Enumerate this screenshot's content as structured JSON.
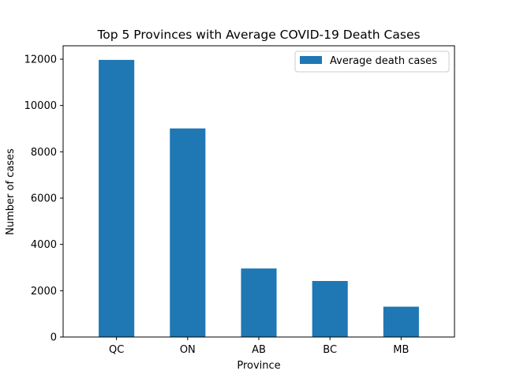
{
  "chart_data": {
    "type": "bar",
    "title": "Top 5 Provinces with Average COVID-19 Death Cases",
    "xlabel": "Province",
    "ylabel": "Number of cases",
    "categories": [
      "QC",
      "ON",
      "AB",
      "BC",
      "MB"
    ],
    "series": [
      {
        "name": "Average death cases",
        "values": [
          11970,
          9010,
          2960,
          2420,
          1310
        ],
        "color": "#1f77b4"
      }
    ],
    "ylim": [
      0,
      12580
    ],
    "yticks": [
      0,
      2000,
      4000,
      6000,
      8000,
      10000,
      12000
    ],
    "grid": false,
    "legend_position": "top-right"
  }
}
